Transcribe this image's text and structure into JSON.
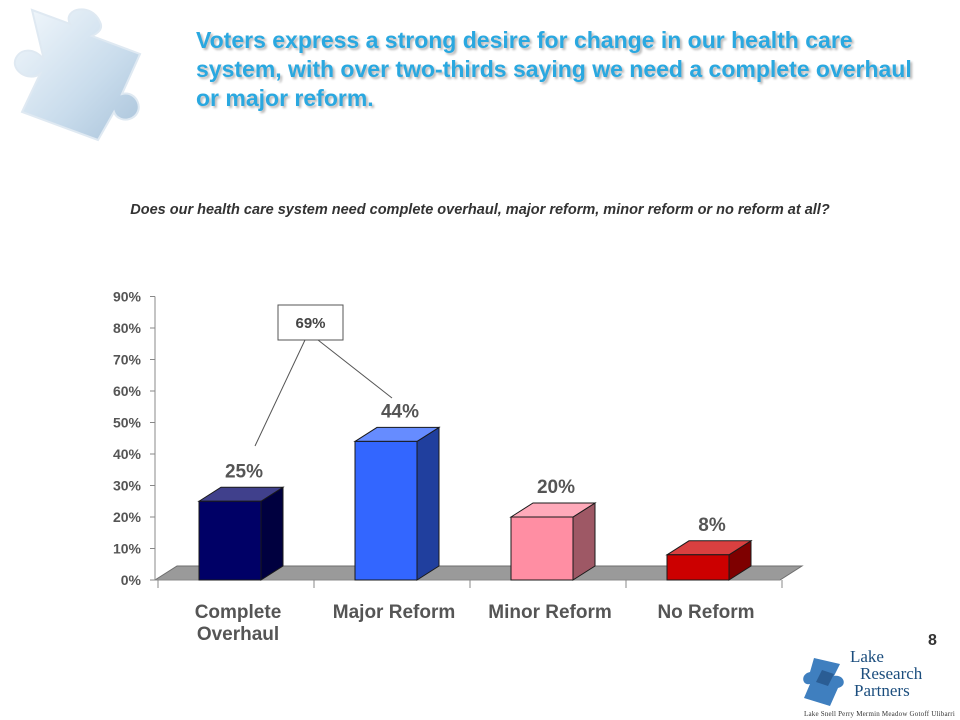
{
  "headline": "Voters express a strong desire for change in our health care system, with over two-thirds saying we need a complete overhaul or major reform.",
  "question": "Does our health care system need complete overhaul, major reform, minor reform or no reform at all?",
  "page_number": "8",
  "logo": {
    "line1": "Lake",
    "line2": "Research",
    "line3": "Partners",
    "names": "Lake  Snell  Perry  Mermin  Meadow  Gotoff  Ulibarri"
  },
  "colors": {
    "headline": "#2aa8e0",
    "logo": "#1c4e7e"
  },
  "chart_data": {
    "type": "bar",
    "categories": [
      [
        "Complete",
        "Overhaul"
      ],
      [
        "Major Reform"
      ],
      [
        "Minor Reform"
      ],
      [
        "No Reform"
      ]
    ],
    "values": [
      25,
      44,
      20,
      8
    ],
    "value_labels": [
      "25%",
      "44%",
      "20%",
      "8%"
    ],
    "bar_colors": [
      "#000066",
      "#3366ff",
      "#ff8ea3",
      "#cc0000"
    ],
    "ylim": [
      0,
      90
    ],
    "yticks": [
      "0%",
      "10%",
      "20%",
      "30%",
      "40%",
      "50%",
      "60%",
      "70%",
      "80%",
      "90%"
    ],
    "grid": false,
    "style": "3d",
    "annotation": {
      "text": "69%",
      "connects": [
        "Complete Overhaul",
        "Major Reform"
      ]
    }
  }
}
